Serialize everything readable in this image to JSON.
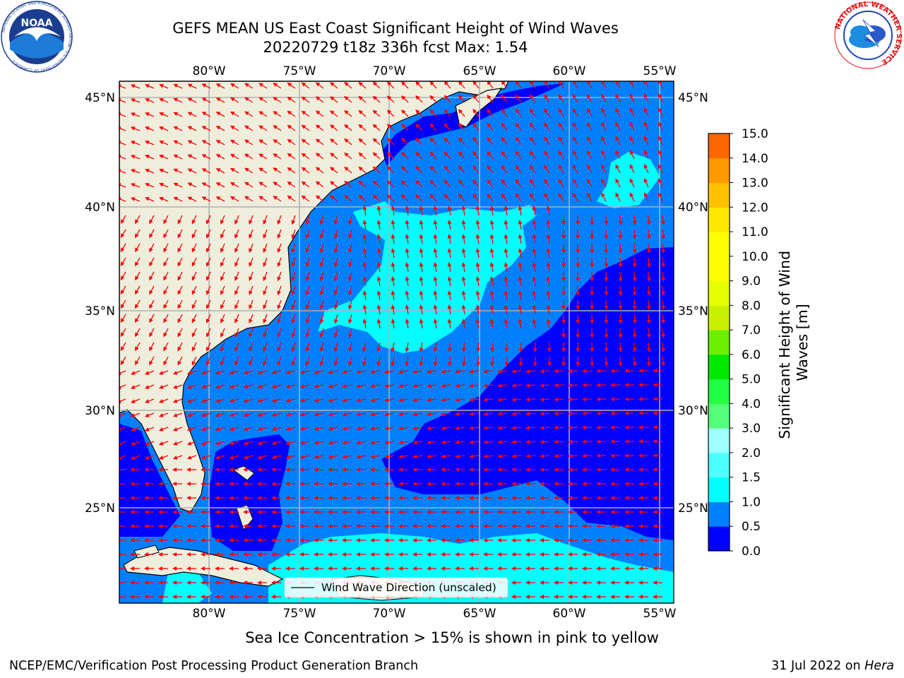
{
  "title": {
    "line1": "GEFS MEAN US East Coast Significant Height of Wind Waves",
    "line2": "20220729 t18z 336h fcst   Max: 1.54"
  },
  "logos": {
    "noaa": {
      "text": "NOAA",
      "ring_text": "NATIONAL OCEANIC AND ATMOSPHERIC ADMINISTRATION · U.S. DEPARTMENT OF COMMERCE"
    },
    "nws": {
      "ring_text": "NATIONAL WEATHER SERVICE"
    }
  },
  "map": {
    "lon_ticks": [
      "80°W",
      "75°W",
      "70°W",
      "65°W",
      "60°W",
      "55°W"
    ],
    "lat_ticks": [
      "45°N",
      "40°N",
      "35°N",
      "30°N",
      "25°N"
    ],
    "legend_label": "Wind Wave Direction (unscaled)",
    "arrow_color": "#ff0000",
    "land_color": "#efeedd",
    "ocean_colors": {
      "0.0-0.5": "#0000ff",
      "0.5-1.0": "#0080ff",
      "1.0-1.5": "#00ffff"
    }
  },
  "colorbar": {
    "label": "Significant Height of Wind Waves [m]",
    "ticks": [
      "15.0",
      "14.0",
      "13.0",
      "12.0",
      "11.0",
      "10.0",
      "9.0",
      "8.0",
      "7.0",
      "6.0",
      "5.0",
      "4.0",
      "3.0",
      "2.0",
      "1.5",
      "1.0",
      "0.5",
      "0.0"
    ],
    "colors": [
      "#0000ff",
      "#0080ff",
      "#00ffff",
      "#4dffff",
      "#a0ffff",
      "#55ff77",
      "#22ff44",
      "#00e800",
      "#6cf000",
      "#c8f000",
      "#e6ff00",
      "#ffff00",
      "#ffff00",
      "#ffe800",
      "#ffc000",
      "#ff9900",
      "#ff6600",
      "#ff3300",
      "#ff0000"
    ]
  },
  "caption": "Sea Ice Concentration > 15% is shown in pink to yellow",
  "footer": {
    "left": "NCEP/EMC/Verification Post Processing Product Generation Branch",
    "right_date": "31 Jul 2022 on ",
    "right_machine": "Hera"
  }
}
